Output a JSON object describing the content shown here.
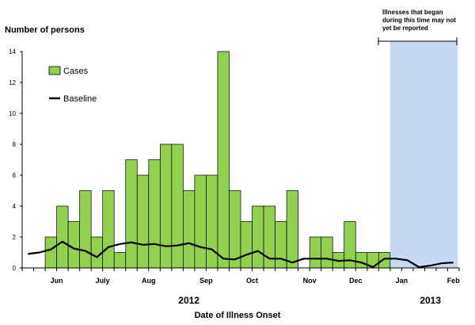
{
  "chart_data": {
    "type": "bar",
    "ylabel": "Number of persons",
    "xlabel": "Date of Illness Onset",
    "ylim": [
      0,
      14
    ],
    "yticks": [
      0,
      2,
      4,
      6,
      8,
      10,
      12,
      14
    ],
    "month_labels": [
      "Jun",
      "July",
      "Aug",
      "Sep",
      "Oct",
      "Nov",
      "Dec",
      "Jan",
      "Feb"
    ],
    "year_labels": [
      "2012",
      "2013"
    ],
    "legend": {
      "cases": "Cases",
      "baseline": "Baseline"
    },
    "colors": {
      "cases": "#92d050",
      "baseline": "#000000",
      "shade": "#c6d9f1"
    },
    "note": {
      "lines": [
        "Illnesses that began",
        "during this time may not",
        "yet be reported"
      ]
    },
    "cases": [
      0,
      0,
      2,
      4,
      3,
      5,
      2,
      5,
      1,
      7,
      6,
      7,
      8,
      8,
      5,
      6,
      6,
      14,
      5,
      3,
      4,
      4,
      3,
      5,
      0,
      2,
      2,
      1,
      3,
      1,
      1,
      1,
      0,
      0,
      0,
      0,
      0,
      0
    ],
    "baseline": [
      0.9,
      1.0,
      1.2,
      1.7,
      1.25,
      1.1,
      0.7,
      1.35,
      1.55,
      1.65,
      1.5,
      1.55,
      1.4,
      1.45,
      1.6,
      1.35,
      1.2,
      0.6,
      0.55,
      0.85,
      1.1,
      0.6,
      0.6,
      0.35,
      0.6,
      0.6,
      0.6,
      0.45,
      0.5,
      0.35,
      0.05,
      0.6,
      0.6,
      0.5,
      0.05,
      0.15,
      0.3,
      0.35
    ]
  }
}
